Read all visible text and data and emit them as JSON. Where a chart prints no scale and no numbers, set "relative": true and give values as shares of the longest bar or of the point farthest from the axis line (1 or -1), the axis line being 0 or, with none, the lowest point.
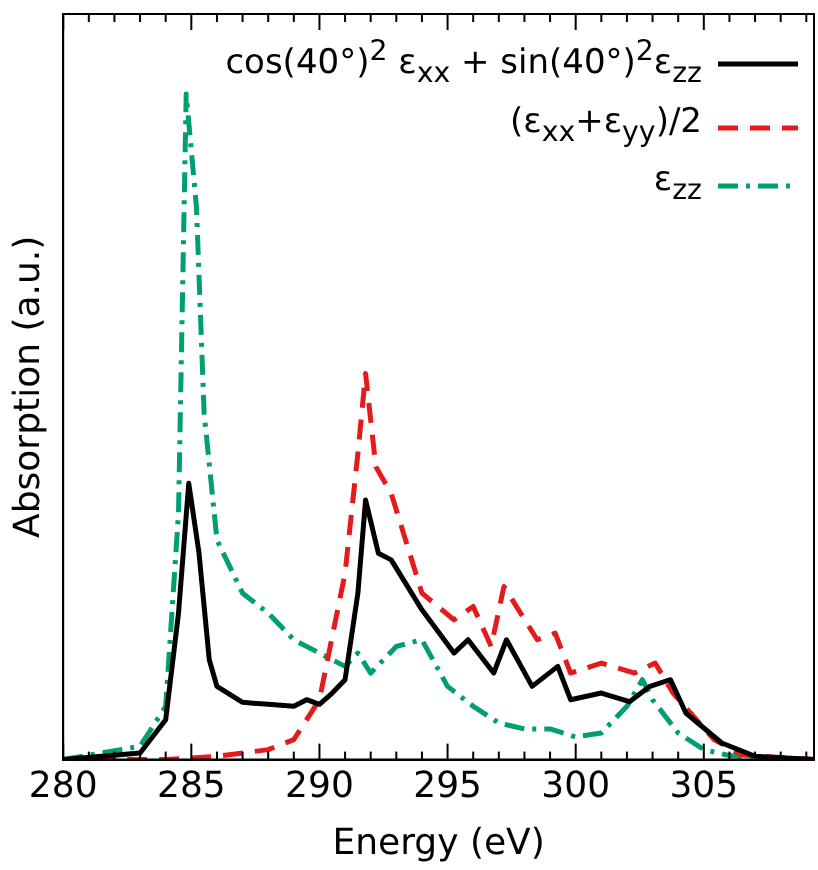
{
  "chart_data": {
    "type": "line",
    "relative": true,
    "xlabel": "Energy (eV)",
    "ylabel": "Absorption (a.u.)",
    "xlim": [
      280,
      309.3
    ],
    "xticks": [
      280,
      {
        "value": 281,
        "label": null
      },
      {
        "value": 282,
        "label": null
      },
      {
        "value": 283,
        "label": null
      },
      {
        "value": 284,
        "label": null
      },
      285,
      {
        "value": 286,
        "label": null
      },
      {
        "value": 287,
        "label": null
      },
      {
        "value": 288,
        "label": null
      },
      {
        "value": 289,
        "label": null
      },
      290,
      {
        "value": 291,
        "label": null
      },
      {
        "value": 292,
        "label": null
      },
      {
        "value": 293,
        "label": null
      },
      {
        "value": 294,
        "label": null
      },
      295,
      {
        "value": 296,
        "label": null
      },
      {
        "value": 297,
        "label": null
      },
      {
        "value": 298,
        "label": null
      },
      {
        "value": 299,
        "label": null
      },
      300,
      {
        "value": 301,
        "label": null
      },
      {
        "value": 302,
        "label": null
      },
      {
        "value": 303,
        "label": null
      },
      {
        "value": 304,
        "label": null
      },
      305,
      {
        "value": 306,
        "label": null
      },
      {
        "value": 307,
        "label": null
      },
      {
        "value": 308,
        "label": null
      },
      {
        "value": 309,
        "label": null
      }
    ],
    "legend": "top right",
    "grid": false,
    "series": [
      {
        "name": "cos(40°)$^{2}$ ε$_{xx}$ + sin(40°)$^{2}$ε$_{zz}$",
        "color": "#000000",
        "line_style": "solid",
        "x": [
          280,
          283,
          284,
          284.5,
          284.9,
          285.3,
          285.7,
          286,
          287,
          288,
          289,
          289.5,
          290,
          290.5,
          291,
          291.5,
          291.8,
          292.3,
          292.8,
          294,
          295.25,
          295.8,
          296.8,
          297.3,
          298.3,
          299.3,
          299.8,
          301,
          302.1,
          302.9,
          303.7,
          304.3,
          305.7,
          307,
          309.3
        ],
        "values": [
          0,
          0.01,
          0.06,
          0.22,
          0.415,
          0.31,
          0.15,
          0.11,
          0.086,
          0.083,
          0.08,
          0.09,
          0.083,
          0.1,
          0.12,
          0.25,
          0.39,
          0.31,
          0.3,
          0.225,
          0.16,
          0.18,
          0.13,
          0.18,
          0.11,
          0.14,
          0.09,
          0.1,
          0.087,
          0.11,
          0.12,
          0.07,
          0.025,
          0.005,
          0
        ]
      },
      {
        "name": "(ε$_{xx}$+ε$_{yy}$)/2",
        "color": "#e41a1c",
        "line_style": "dashed",
        "x": [
          280,
          284,
          286,
          288,
          289,
          290,
          291,
          291.5,
          291.8,
          292.2,
          292.8,
          294,
          295.25,
          296,
          296.7,
          297.2,
          298.5,
          299.2,
          299.8,
          301,
          302.3,
          303.1,
          303.8,
          305.4,
          306.5,
          309.3
        ],
        "values": [
          0,
          0,
          0.005,
          0.015,
          0.03,
          0.09,
          0.28,
          0.46,
          0.58,
          0.44,
          0.4,
          0.25,
          0.21,
          0.23,
          0.17,
          0.26,
          0.18,
          0.19,
          0.13,
          0.145,
          0.13,
          0.145,
          0.1,
          0.03,
          0.007,
          0
        ]
      },
      {
        "name": "ε$_{zz}$",
        "color": "#009e73",
        "line_style": "dashdot",
        "x": [
          280,
          283,
          284,
          284.5,
          284.8,
          285.2,
          285.5,
          286,
          287,
          288,
          289,
          290,
          291,
          291.5,
          292,
          293,
          294,
          295,
          296,
          297,
          298,
          299,
          300,
          301,
          302,
          302.6,
          303,
          304,
          305,
          306,
          307,
          309.3
        ],
        "values": [
          0,
          0.02,
          0.08,
          0.37,
          1,
          0.83,
          0.52,
          0.33,
          0.25,
          0.22,
          0.18,
          0.16,
          0.14,
          0.16,
          0.13,
          0.17,
          0.18,
          0.11,
          0.08,
          0.055,
          0.046,
          0.046,
          0.034,
          0.04,
          0.08,
          0.12,
          0.09,
          0.04,
          0.015,
          0.006,
          0.003,
          0
        ]
      }
    ]
  }
}
